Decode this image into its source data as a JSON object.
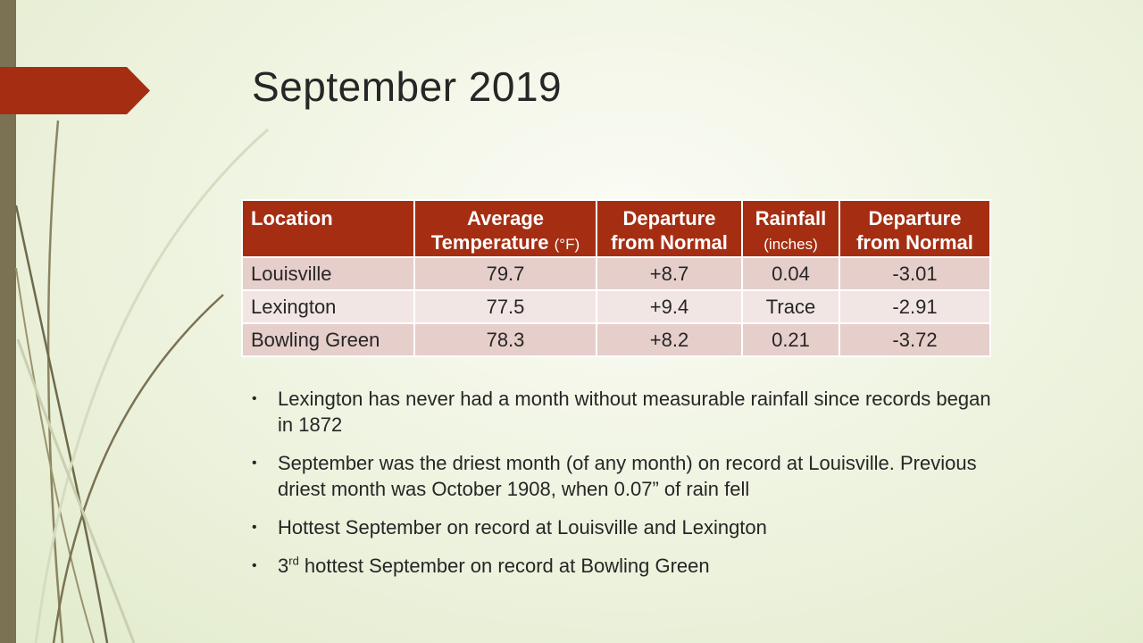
{
  "slide": {
    "title": "September 2019",
    "accent_color": "#a52e12",
    "sidebar_color": "#7a7253"
  },
  "table": {
    "headers": {
      "location": "Location",
      "avg_temp": "Average Temperature",
      "avg_temp_unit": "(°F)",
      "temp_departure": "Departure from Normal",
      "rainfall": "Rainfall",
      "rainfall_unit": "(inches)",
      "rain_departure": "Departure from Normal"
    },
    "rows": [
      {
        "location": "Louisville",
        "avg_temp": "79.7",
        "temp_departure": "+8.7",
        "rainfall": "0.04",
        "rain_departure": "-3.01"
      },
      {
        "location": "Lexington",
        "avg_temp": "77.5",
        "temp_departure": "+9.4",
        "rainfall": "Trace",
        "rain_departure": "-2.91"
      },
      {
        "location": "Bowling Green",
        "avg_temp": "78.3",
        "temp_departure": "+8.2",
        "rainfall": "0.21",
        "rain_departure": "-3.72"
      }
    ]
  },
  "bullets": {
    "b1": "Lexington has never had a month without measurable rainfall since records began in 1872",
    "b2": "September was the driest month (of any month) on record at Louisville. Previous driest month was October 1908, when 0.07” of rain fell",
    "b3": "Hottest September on record at Louisville and Lexington",
    "b4_num": "3",
    "b4_sup": "rd",
    "b4_rest": " hottest September on record at Bowling Green",
    "marker": "•"
  }
}
